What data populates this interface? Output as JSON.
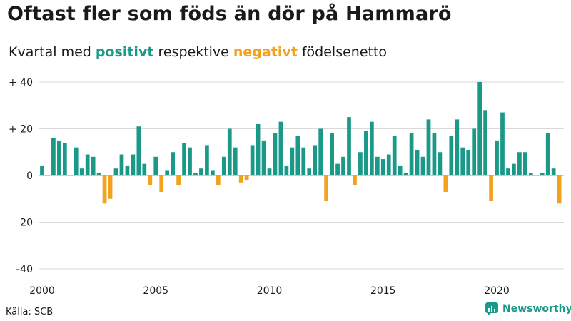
{
  "header": {
    "title": "Oftast fler som föds än dör på Hammarö",
    "subtitle_pre": "Kvartal med ",
    "subtitle_pos": "positivt",
    "subtitle_mid": " respektive ",
    "subtitle_neg": "negativt",
    "subtitle_post": " födelsenetto"
  },
  "footer": {
    "source": "Källa: SCB",
    "brand": "Newsworthy"
  },
  "chart_data": {
    "type": "bar",
    "ylim": [
      -45,
      42
    ],
    "yticks": [
      40,
      20,
      0,
      -20,
      -40
    ],
    "ytick_labels": [
      "+ 40",
      "+ 20",
      "0",
      "–20",
      "–40"
    ],
    "xticks": [
      2000,
      2005,
      2010,
      2015,
      2020
    ],
    "xtick_labels": [
      "2000",
      "2005",
      "2010",
      "2015",
      "2020"
    ],
    "grid": true,
    "start_year": 2000,
    "positive_color": "#1a9988",
    "negative_color": "#f2a21d",
    "values": [
      4,
      0,
      16,
      15,
      14,
      0,
      12,
      3,
      9,
      8,
      1,
      -12,
      -10,
      3,
      9,
      4,
      9,
      21,
      5,
      -4,
      8,
      -7,
      2,
      10,
      -4,
      14,
      12,
      1,
      3,
      13,
      2,
      -4,
      8,
      20,
      12,
      -3,
      -2,
      13,
      22,
      15,
      3,
      18,
      23,
      4,
      12,
      17,
      12,
      3,
      13,
      20,
      -11,
      18,
      5,
      8,
      25,
      -4,
      10,
      19,
      23,
      8,
      7,
      9,
      17,
      4,
      1,
      18,
      11,
      8,
      24,
      18,
      10,
      -7,
      17,
      24,
      12,
      11,
      20,
      40,
      28,
      -11,
      15,
      27,
      3,
      5,
      10,
      10,
      1,
      0,
      1,
      18,
      3,
      -12
    ]
  }
}
